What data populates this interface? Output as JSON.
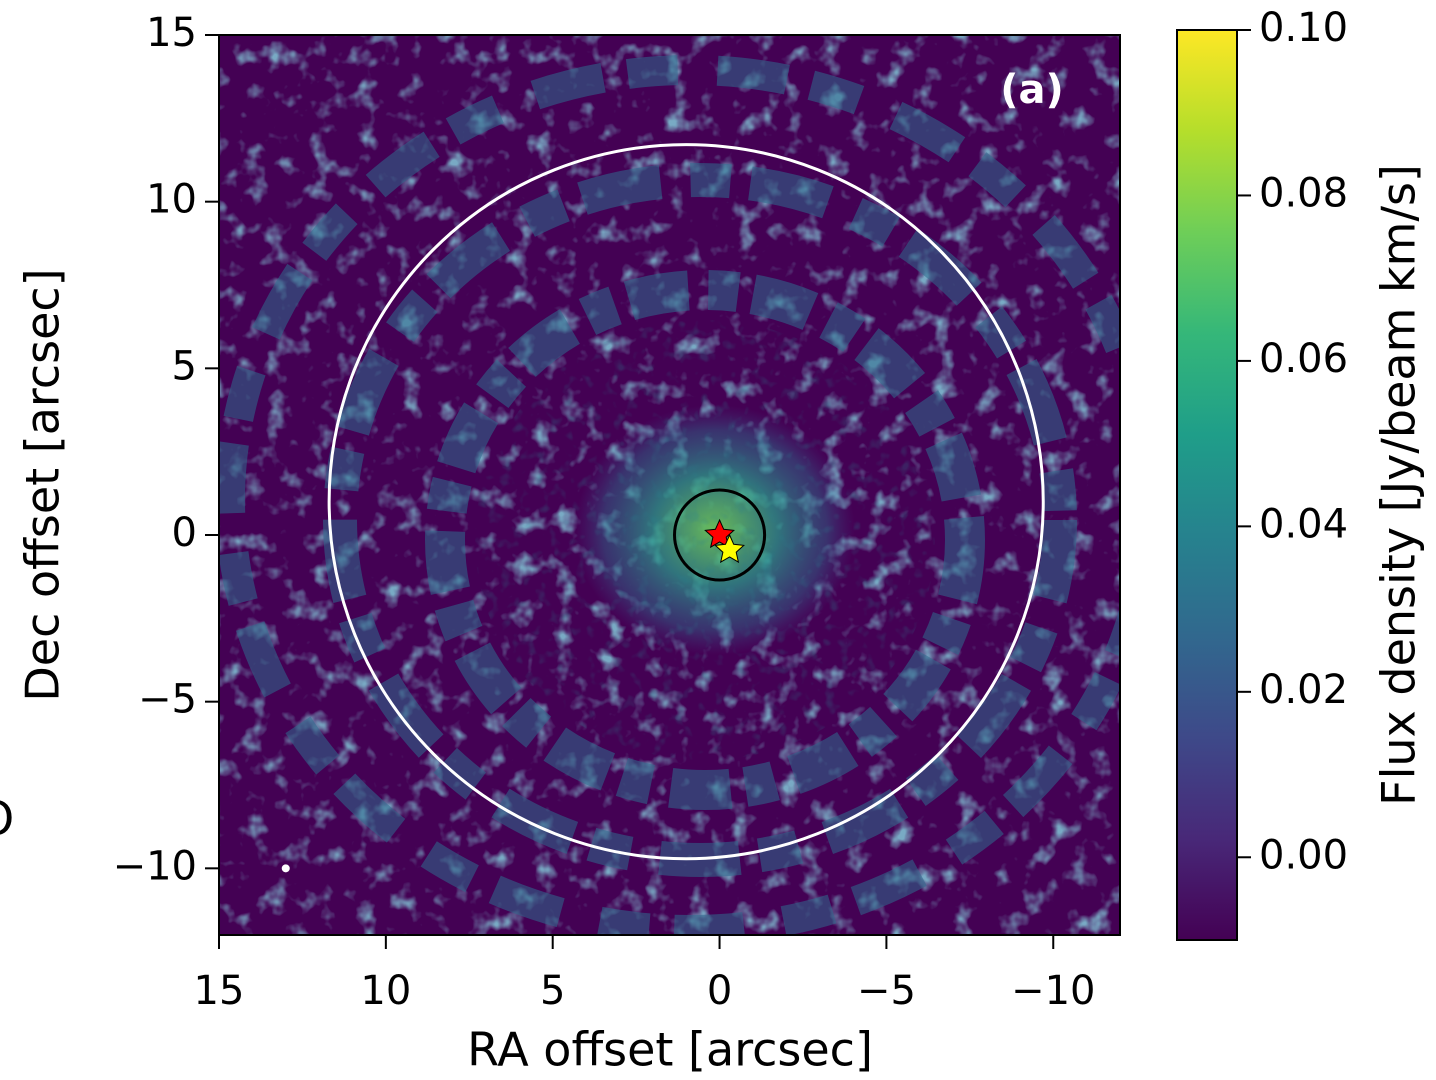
{
  "chart_data": {
    "type": "image",
    "panel_label": "(a)",
    "side_text": "O",
    "xlabel": "RA offset [arcsec]",
    "ylabel": "Dec offset [arcsec]",
    "colorbar_label": "Flux density [Jy/beam km/s]",
    "xlim": [
      15,
      -12
    ],
    "ylim": [
      -12,
      15
    ],
    "xticks": [
      15,
      10,
      5,
      0,
      {
        "value": -5,
        "label": "−5"
      },
      {
        "value": -10,
        "label": "−10"
      }
    ],
    "yticks": [
      15,
      10,
      5,
      0,
      {
        "value": -5,
        "label": "−5"
      },
      {
        "value": -10,
        "label": "−10"
      }
    ],
    "clim": [
      -0.01,
      0.1
    ],
    "cticks": [
      {
        "value": 0,
        "label": "0.00"
      },
      {
        "value": 0.02,
        "label": "0.02"
      },
      {
        "value": 0.04,
        "label": "0.04"
      },
      {
        "value": 0.06,
        "label": "0.06"
      },
      {
        "value": 0.08,
        "label": "0.08"
      },
      {
        "value": 0.1,
        "label": "0.10"
      }
    ],
    "colormap": [
      "#440154",
      "#482878",
      "#3e4989",
      "#31688e",
      "#26828e",
      "#1f9e89",
      "#35b779",
      "#6ece58",
      "#b5de2b",
      "#fde725"
    ],
    "circles": [
      {
        "x": 1,
        "y": 1,
        "r": 10.7,
        "color": "#ffffff"
      },
      {
        "x": 0,
        "y": 0,
        "r": 1.35,
        "color": "#000000"
      }
    ],
    "markers": [
      {
        "x": 0,
        "y": 0,
        "color": "#ff0000",
        "shape": "star"
      },
      {
        "x": -0.3,
        "y": -0.45,
        "color": "#ffff00",
        "shape": "star"
      },
      {
        "x": 13,
        "y": -10,
        "color": "#ffffff",
        "shape": "dot"
      }
    ]
  }
}
